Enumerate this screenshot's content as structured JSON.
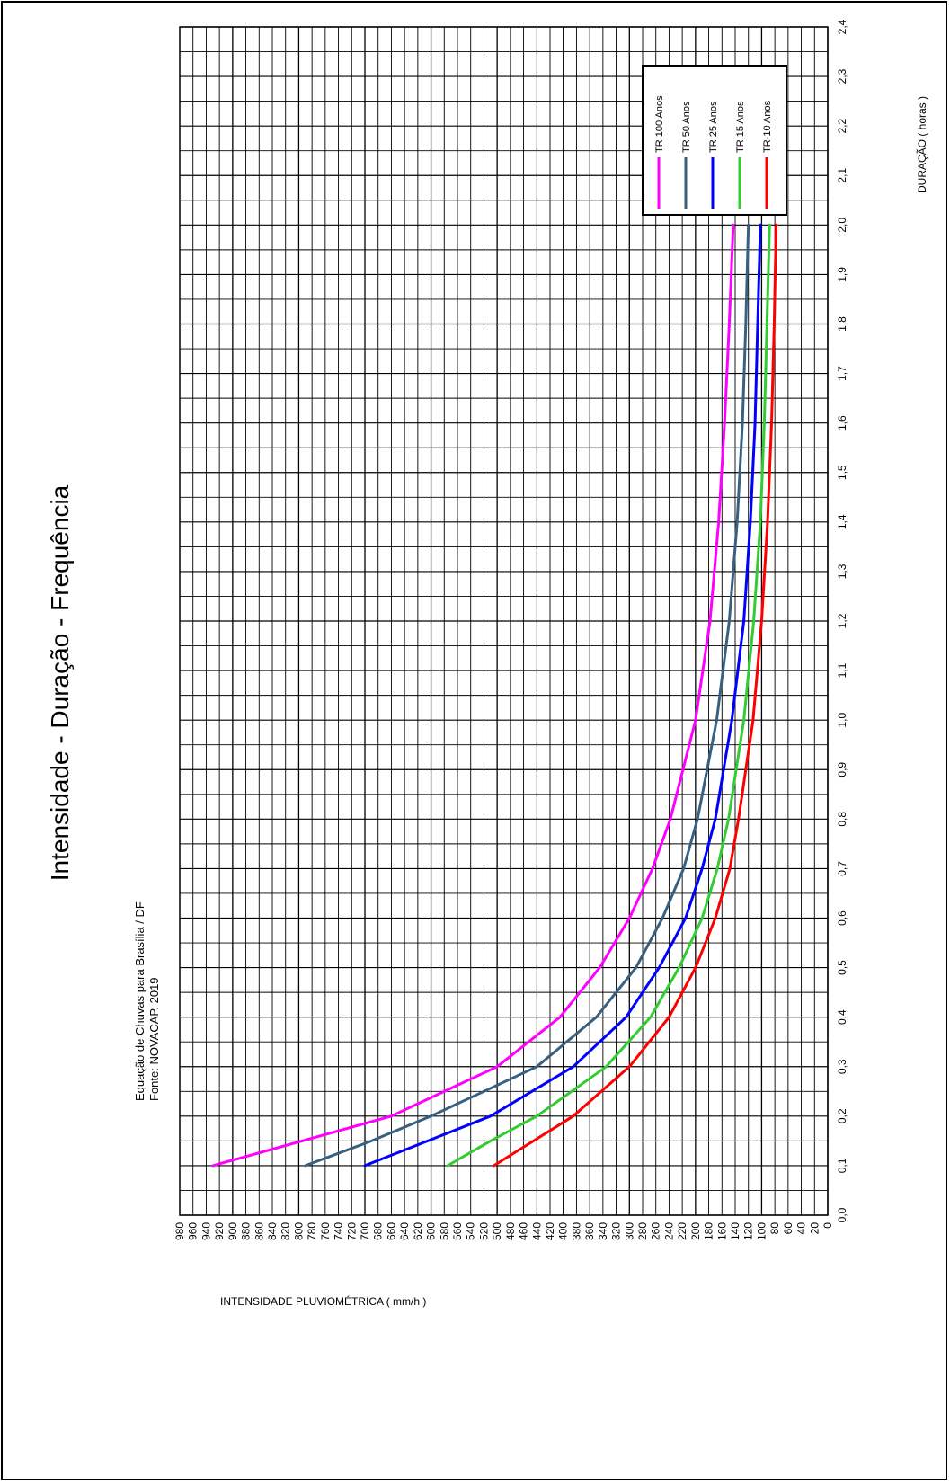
{
  "chart_data": {
    "type": "line",
    "title": "Intensidade - Duração - Frequência",
    "subtitle_lines": [
      "Equação de Chuvas para Brasília / DF",
      "Fonte: NOVACAP. 2019"
    ],
    "xlabel": "DURAÇÃO  ( horas )",
    "ylabel": "INTENSIDADE PLUVIOMÉTRICA  ( mm/h )",
    "xlim": [
      0,
      2.4
    ],
    "ylim": [
      0,
      980
    ],
    "x_ticks": [
      "0,0",
      "0,1",
      "0,2",
      "0,3",
      "0,4",
      "0,5",
      "0,6",
      "0,7",
      "0,8",
      "0,9",
      "1,0",
      "1,1",
      "1,2",
      "1,3",
      "1,4",
      "1,5",
      "1,6",
      "1,7",
      "1,8",
      "1,9",
      "2,0",
      "2,1",
      "2,2",
      "2,3",
      "2,4"
    ],
    "y_ticks": [
      "0",
      "20",
      "40",
      "60",
      "80",
      "100",
      "120",
      "140",
      "160",
      "180",
      "200",
      "220",
      "240",
      "260",
      "280",
      "300",
      "320",
      "340",
      "360",
      "380",
      "400",
      "420",
      "440",
      "460",
      "480",
      "500",
      "520",
      "540",
      "560",
      "580",
      "600",
      "620",
      "640",
      "660",
      "680",
      "700",
      "720",
      "740",
      "760",
      "780",
      "800",
      "820",
      "840",
      "860",
      "880",
      "900",
      "920",
      "940",
      "960",
      "980"
    ],
    "grid": true,
    "legend_position": "top-right",
    "x": [
      0.1,
      0.15,
      0.2,
      0.3,
      0.4,
      0.5,
      0.6,
      0.7,
      0.8,
      1.0,
      1.2,
      1.4,
      1.6,
      1.8,
      2.0
    ],
    "series": [
      {
        "name": "TR 100 Anos",
        "color": "#ff00ff",
        "values": [
          930,
          795,
          660,
          500,
          405,
          345,
          300,
          265,
          238,
          200,
          178,
          165,
          156,
          149,
          143
        ]
      },
      {
        "name": "TR 50 Anos",
        "color": "#3a6080",
        "values": [
          790,
          690,
          600,
          440,
          350,
          290,
          250,
          218,
          197,
          168,
          149,
          137,
          129,
          124,
          120
        ]
      },
      {
        "name": "TR 25 Anos",
        "color": "#0000ff",
        "values": [
          700,
          605,
          510,
          385,
          305,
          255,
          215,
          190,
          170,
          145,
          127,
          117,
          110,
          106,
          102
        ]
      },
      {
        "name": "TR 15 Anos",
        "color": "#33cc33",
        "values": [
          575,
          510,
          440,
          335,
          268,
          225,
          190,
          167,
          150,
          127,
          112,
          102,
          96,
          92,
          88
        ]
      },
      {
        "name": "TR-10 Anos",
        "color": "#ff0000",
        "values": [
          505,
          445,
          385,
          300,
          240,
          200,
          170,
          148,
          135,
          113,
          100,
          91,
          85,
          81,
          78
        ]
      }
    ]
  }
}
